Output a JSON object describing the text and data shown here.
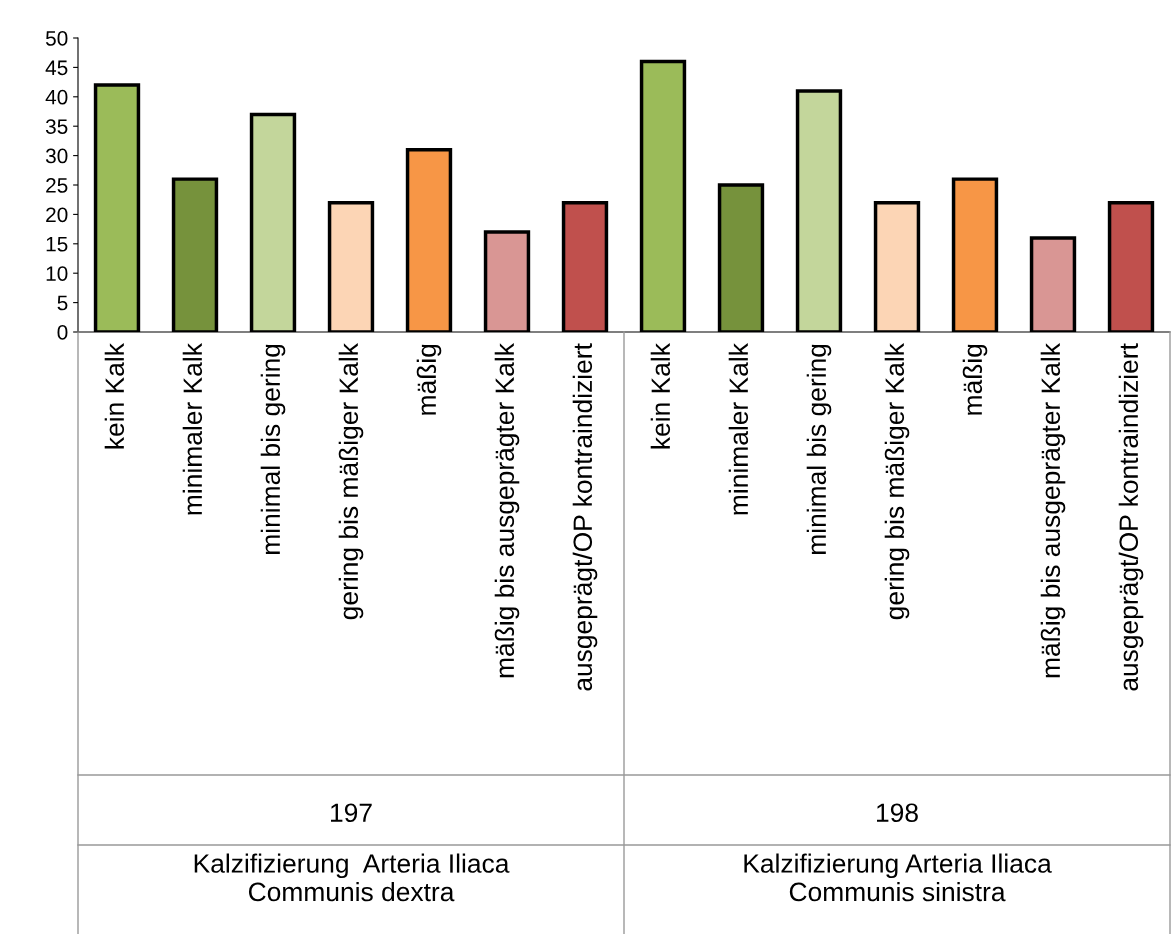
{
  "chart_data": {
    "type": "bar",
    "categories": [
      "kein Kalk",
      "minimaler Kalk",
      "minimal bis gering",
      "gering bis mäßiger Kalk",
      "mäßig",
      "mäßig bis ausgeprägter Kalk",
      "ausgeprägt/OP kontraindiziert",
      "kein Kalk",
      "minimaler Kalk",
      "minimal bis gering",
      "gering bis mäßiger Kalk",
      "mäßig",
      "mäßig bis ausgeprägter Kalk",
      "ausgeprägt/OP kontraindiziert"
    ],
    "values": [
      42,
      26,
      37,
      22,
      31,
      17,
      22,
      46,
      25,
      41,
      22,
      26,
      16,
      22
    ],
    "colors": [
      "#9bbb59",
      "#76923c",
      "#c3d69b",
      "#fcd5b5",
      "#f79646",
      "#d99694",
      "#c0504d",
      "#9bbb59",
      "#76923c",
      "#c3d69b",
      "#fcd5b5",
      "#f79646",
      "#d99694",
      "#c0504d"
    ],
    "ylim": [
      0,
      50
    ],
    "yticks": [
      0,
      5,
      10,
      15,
      20,
      25,
      30,
      35,
      40,
      45,
      50
    ],
    "grid": false,
    "legend": false,
    "annotations": [
      "197",
      "Kalzifizierung  Arteria Iliaca\nCommunis dextra",
      "198",
      "Kalzifizierung Arteria Iliaca\nCommunis sinistra"
    ]
  }
}
